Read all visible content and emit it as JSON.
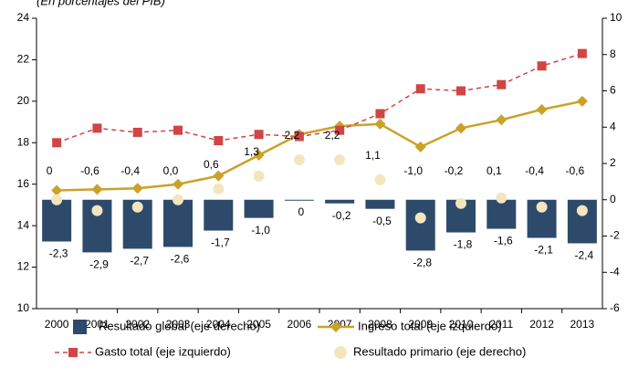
{
  "chart_data": {
    "type": "combo",
    "subtitle": "(En porcentajes del PIB)",
    "categories": [
      "2000",
      "2001",
      "2002",
      "2003",
      "2004",
      "2005",
      "2006",
      "2007",
      "2008",
      "2009",
      "2010",
      "2011",
      "2012",
      "2013"
    ],
    "ylim": [
      10,
      24
    ],
    "yticks": [
      10,
      12,
      14,
      16,
      18,
      20,
      22,
      24
    ],
    "y2lim": [
      -6,
      10
    ],
    "y2ticks": [
      -6,
      -4,
      -2,
      0,
      2,
      4,
      6,
      8,
      10
    ],
    "grid": false,
    "series": [
      {
        "name": "Resultado global (eje derecho)",
        "type": "bar",
        "axis": "y2",
        "color": "#2e4a6b",
        "values": [
          -2.3,
          -2.9,
          -2.7,
          -2.6,
          -1.7,
          -1.0,
          0,
          -0.2,
          -0.5,
          -2.8,
          -1.8,
          -1.6,
          -2.1,
          -2.4
        ],
        "value_labels": [
          "-2,3",
          "-2,9",
          "-2,7",
          "-2,6",
          "-1,7",
          "-1,0",
          "0",
          "-0,2",
          "-0,5",
          "-2,8",
          "-1,8",
          "-1,6",
          "-2,1",
          "-2,4"
        ]
      },
      {
        "name": "Ingreso total (eje izquierdo)",
        "type": "line",
        "marker": "diamond",
        "color": "#c9a227",
        "values": [
          15.7,
          15.75,
          15.8,
          16.0,
          16.4,
          17.4,
          18.4,
          18.8,
          18.9,
          17.8,
          18.7,
          19.1,
          19.6,
          20.0
        ]
      },
      {
        "name": "Gasto total (eje izquierdo)",
        "type": "line",
        "marker": "square",
        "dashed": true,
        "color": "#d04545",
        "values": [
          18.0,
          18.7,
          18.5,
          18.6,
          18.1,
          18.4,
          18.3,
          18.6,
          19.4,
          20.6,
          20.5,
          20.8,
          21.7,
          22.3
        ]
      },
      {
        "name": "Resultado primario (eje derecho)",
        "type": "scatter",
        "axis": "y2",
        "color": "#f3e6bf",
        "values": [
          0,
          -0.6,
          -0.4,
          0.0,
          0.6,
          1.3,
          2.2,
          2.2,
          1.1,
          -1.0,
          -0.2,
          0.1,
          -0.4,
          -0.6
        ],
        "value_labels": [
          "0",
          "-0,6",
          "-0,4",
          "0,0",
          "0,6",
          "1,3",
          "2,2",
          "2,2",
          "1,1",
          "-1,0",
          "-0,2",
          "0,1",
          "-0,4",
          "-0,6"
        ]
      }
    ]
  }
}
